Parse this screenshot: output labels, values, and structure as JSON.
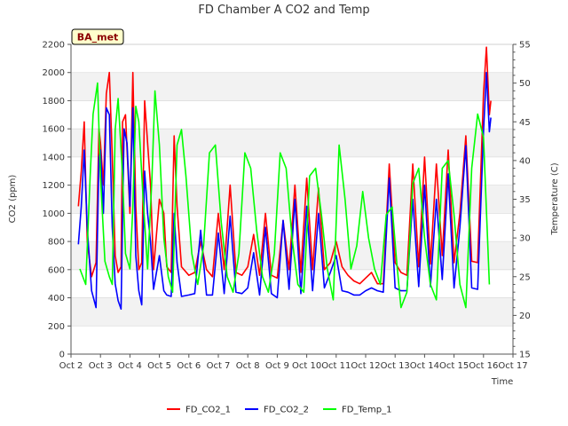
{
  "chart_data": {
    "type": "line",
    "title": "FD Chamber A CO2 and Temp",
    "badge": "BA_met",
    "xlabel": "Time",
    "ylabel": "CO2 (ppm)",
    "y2label": "Temperature (C)",
    "x_ticks": [
      "Oct 2",
      "Oct 3",
      "Oct 4",
      "Oct 5",
      "Oct 6",
      "Oct 7",
      "Oct 8",
      "Oct 9",
      "Oct 10",
      "Oct 11",
      "Oct 12",
      "Oct 13",
      "Oct 14",
      "Oct 15",
      "Oct 16",
      "Oct 17"
    ],
    "y_ticks": [
      0,
      200,
      400,
      600,
      800,
      1000,
      1200,
      1400,
      1600,
      1800,
      2000,
      2200
    ],
    "y2_ticks": [
      15,
      20,
      25,
      30,
      35,
      40,
      45,
      50,
      55
    ],
    "xlim": [
      2,
      17
    ],
    "ylim": [
      0,
      2200
    ],
    "y2lim": [
      15,
      55
    ],
    "grid": true,
    "legend_position": "bottom",
    "series": [
      {
        "name": "FD_CO2_1",
        "axis": "left",
        "color": "#ff0000",
        "x": [
          2.25,
          2.35,
          2.45,
          2.55,
          2.7,
          2.85,
          2.95,
          3.0,
          3.1,
          3.2,
          3.3,
          3.4,
          3.5,
          3.6,
          3.7,
          3.75,
          3.85,
          4.0,
          4.1,
          4.2,
          4.3,
          4.4,
          4.5,
          4.6,
          4.7,
          4.8,
          5.0,
          5.15,
          5.25,
          5.4,
          5.5,
          5.6,
          5.75,
          6.0,
          6.2,
          6.4,
          6.6,
          6.8,
          7.0,
          7.2,
          7.4,
          7.6,
          7.8,
          8.0,
          8.2,
          8.4,
          8.6,
          8.8,
          9.0,
          9.2,
          9.4,
          9.6,
          9.8,
          10.0,
          10.2,
          10.4,
          10.6,
          10.8,
          11.0,
          11.2,
          11.4,
          11.6,
          11.8,
          12.0,
          12.2,
          12.4,
          12.6,
          12.8,
          13.0,
          13.2,
          13.4,
          13.6,
          13.8,
          14.0,
          14.2,
          14.4,
          14.6,
          14.8,
          15.0,
          15.2,
          15.4,
          15.6,
          15.8,
          16.0,
          16.1,
          16.2,
          16.25
        ],
        "y": [
          1050,
          1300,
          1650,
          800,
          550,
          650,
          1600,
          1500,
          1200,
          1850,
          2000,
          1400,
          700,
          580,
          620,
          1650,
          1700,
          1000,
          2000,
          1050,
          600,
          650,
          1800,
          1500,
          1200,
          600,
          1100,
          1000,
          620,
          580,
          1550,
          1050,
          620,
          560,
          580,
          800,
          600,
          550,
          1000,
          600,
          1200,
          580,
          560,
          620,
          850,
          560,
          1000,
          560,
          540,
          950,
          600,
          1200,
          580,
          1250,
          600,
          1180,
          600,
          650,
          800,
          620,
          560,
          520,
          500,
          540,
          580,
          500,
          500,
          1350,
          650,
          580,
          560,
          1350,
          620,
          1400,
          640,
          1350,
          700,
          1450,
          650,
          1000,
          1550,
          660,
          650,
          1850,
          2180,
          1700,
          1800
        ]
      },
      {
        "name": "FD_CO2_2",
        "axis": "left",
        "color": "#0000ff",
        "x": [
          2.25,
          2.35,
          2.45,
          2.55,
          2.7,
          2.85,
          2.95,
          3.0,
          3.1,
          3.2,
          3.3,
          3.4,
          3.5,
          3.6,
          3.7,
          3.8,
          3.9,
          4.0,
          4.1,
          4.2,
          4.3,
          4.4,
          4.5,
          4.6,
          4.7,
          4.8,
          5.0,
          5.15,
          5.25,
          5.4,
          5.5,
          5.6,
          5.75,
          6.0,
          6.2,
          6.4,
          6.6,
          6.8,
          7.0,
          7.2,
          7.4,
          7.6,
          7.8,
          8.0,
          8.2,
          8.4,
          8.6,
          8.8,
          9.0,
          9.2,
          9.4,
          9.6,
          9.8,
          10.0,
          10.2,
          10.4,
          10.6,
          10.8,
          11.0,
          11.2,
          11.4,
          11.6,
          11.8,
          12.0,
          12.2,
          12.4,
          12.6,
          12.8,
          13.0,
          13.2,
          13.4,
          13.6,
          13.8,
          14.0,
          14.2,
          14.4,
          14.6,
          14.8,
          15.0,
          15.2,
          15.4,
          15.6,
          15.8,
          16.0,
          16.1,
          16.2,
          16.25
        ],
        "y": [
          780,
          1050,
          1450,
          900,
          450,
          330,
          1400,
          1450,
          1000,
          1750,
          1700,
          900,
          500,
          380,
          320,
          1600,
          1500,
          1050,
          1750,
          700,
          450,
          350,
          1300,
          1000,
          800,
          460,
          700,
          450,
          420,
          410,
          1000,
          650,
          410,
          420,
          430,
          880,
          420,
          420,
          860,
          430,
          980,
          440,
          430,
          470,
          720,
          420,
          900,
          430,
          400,
          950,
          460,
          1100,
          430,
          1050,
          450,
          1000,
          470,
          580,
          700,
          450,
          440,
          420,
          420,
          450,
          470,
          450,
          440,
          1250,
          470,
          450,
          450,
          1100,
          480,
          1200,
          480,
          1100,
          530,
          1280,
          470,
          900,
          1480,
          470,
          460,
          1580,
          2000,
          1580,
          1680
        ]
      },
      {
        "name": "FD_Temp_1",
        "axis": "right",
        "color": "#00ff00",
        "x": [
          2.3,
          2.5,
          2.65,
          2.75,
          2.9,
          3.0,
          3.15,
          3.3,
          3.4,
          3.5,
          3.6,
          3.75,
          3.85,
          4.0,
          4.1,
          4.2,
          4.3,
          4.45,
          4.6,
          4.75,
          4.85,
          5.0,
          5.15,
          5.3,
          5.45,
          5.6,
          5.75,
          5.9,
          6.1,
          6.3,
          6.5,
          6.7,
          6.9,
          7.1,
          7.3,
          7.5,
          7.7,
          7.9,
          8.1,
          8.3,
          8.5,
          8.7,
          8.9,
          9.1,
          9.3,
          9.5,
          9.7,
          9.9,
          10.1,
          10.3,
          10.5,
          10.7,
          10.9,
          11.1,
          11.3,
          11.5,
          11.7,
          11.9,
          12.1,
          12.3,
          12.5,
          12.7,
          12.9,
          13.05,
          13.2,
          13.4,
          13.6,
          13.8,
          14.0,
          14.2,
          14.4,
          14.6,
          14.8,
          15.0,
          15.2,
          15.4,
          15.6,
          15.8,
          16.0,
          16.2
        ],
        "y": [
          26,
          24,
          38,
          46,
          50,
          38,
          27,
          25,
          24,
          44,
          48,
          38,
          28,
          26,
          34,
          47,
          45,
          35,
          26,
          38,
          49,
          42,
          30,
          25,
          23,
          42,
          44,
          38,
          28,
          24,
          29,
          41,
          42,
          32,
          25,
          23,
          28,
          41,
          39,
          31,
          25,
          23,
          28,
          41,
          39,
          30,
          24,
          23,
          38,
          39,
          33,
          26,
          22,
          42,
          35,
          26,
          29,
          36,
          30,
          26,
          24,
          33,
          34,
          27,
          21,
          23,
          37,
          39,
          30,
          24,
          22,
          39,
          40,
          33,
          24,
          21,
          39,
          46,
          43,
          24
        ]
      }
    ]
  }
}
